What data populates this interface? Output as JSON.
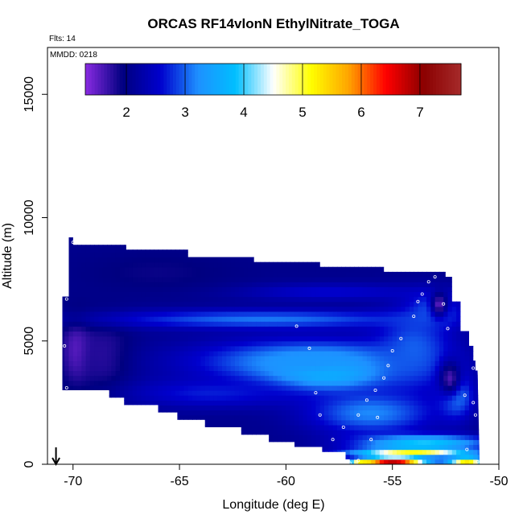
{
  "chart_data": {
    "type": "heatmap",
    "title": "ORCAS RF14vlonN EthylNitrate_TOGA",
    "notes": {
      "flights": "Flts: 14",
      "date": "MMDD: 0218"
    },
    "xlabel": "Longitude (deg E)",
    "ylabel": "Altitude (m)",
    "xlim": [
      -71.2,
      -50
    ],
    "ylim": [
      0,
      16900
    ],
    "x_ticks": [
      -70,
      -65,
      -60,
      -55,
      -50
    ],
    "y_ticks": [
      0,
      5000,
      10000,
      15000
    ],
    "colorbar": {
      "range": [
        1.3,
        7.7
      ],
      "ticks": [
        2,
        3,
        4,
        5,
        6,
        7
      ],
      "colors": [
        "#8a2be2",
        "#000080",
        "#0000cd",
        "#1e90ff",
        "#00bfff",
        "#ffffff",
        "#ffff00",
        "#ffa500",
        "#ff0000",
        "#8b0000",
        "#a52a2a"
      ],
      "placement": "top, inside plot"
    },
    "grid": false,
    "arrow_marker_longitude": -70.8,
    "domain_outline": {
      "top": [
        [
          -70.2,
          8200
        ],
        [
          -70.2,
          9200
        ],
        [
          -70.0,
          9200
        ],
        [
          -70.0,
          8900
        ],
        [
          -67.5,
          8900
        ],
        [
          -67.5,
          8700
        ],
        [
          -64.6,
          8700
        ],
        [
          -64.6,
          8400
        ],
        [
          -61.5,
          8400
        ],
        [
          -61.5,
          8200
        ],
        [
          -58.4,
          8200
        ],
        [
          -58.4,
          8000
        ],
        [
          -55.4,
          8000
        ],
        [
          -55.4,
          7800
        ],
        [
          -52.5,
          7800
        ],
        [
          -52.5,
          7600
        ],
        [
          -52.2,
          7600
        ],
        [
          -52.2,
          6600
        ],
        [
          -51.8,
          6600
        ],
        [
          -51.8,
          5400
        ],
        [
          -51.4,
          5400
        ],
        [
          -51.4,
          4800
        ],
        [
          -51.2,
          4800
        ],
        [
          -51.2,
          4200
        ],
        [
          -51.1,
          4200
        ],
        [
          -51.1,
          3800
        ],
        [
          -51.0,
          3800
        ]
      ],
      "bottom": [
        [
          -70.5,
          3000
        ],
        [
          -68.3,
          3000
        ],
        [
          -68.3,
          2700
        ],
        [
          -67.6,
          2700
        ],
        [
          -67.6,
          2400
        ],
        [
          -66.0,
          2400
        ],
        [
          -66.0,
          2100
        ],
        [
          -65.1,
          2100
        ],
        [
          -65.1,
          1800
        ],
        [
          -63.8,
          1800
        ],
        [
          -63.8,
          1500
        ],
        [
          -62.1,
          1500
        ],
        [
          -62.1,
          1200
        ],
        [
          -60.8,
          1200
        ],
        [
          -60.8,
          900
        ],
        [
          -59.6,
          900
        ],
        [
          -59.6,
          700
        ],
        [
          -58.3,
          700
        ],
        [
          -58.3,
          500
        ],
        [
          -57.2,
          500
        ],
        [
          -57.2,
          200
        ],
        [
          -57.0,
          200
        ],
        [
          -57.0,
          0
        ],
        [
          -50.9,
          0
        ]
      ],
      "left": [
        [
          -70.5,
          3000
        ],
        [
          -70.5,
          6800
        ],
        [
          -70.2,
          6800
        ],
        [
          -70.2,
          8200
        ]
      ]
    },
    "field_blobs": [
      {
        "lon": -69.8,
        "alt": 4600,
        "sx": 0.7,
        "sy": 1300,
        "value": 1.45
      },
      {
        "lon": -68.5,
        "alt": 4300,
        "sx": 1.3,
        "sy": 1600,
        "value": 1.7
      },
      {
        "lon": -58.2,
        "alt": 3800,
        "sx": 2.8,
        "sy": 700,
        "value": 4.4
      },
      {
        "lon": -59.0,
        "alt": 4200,
        "sx": 5.5,
        "sy": 900,
        "value": 3.3
      },
      {
        "lon": -61.0,
        "alt": 5900,
        "sx": 7.5,
        "sy": 380,
        "value": 3.1
      },
      {
        "lon": -58.0,
        "alt": 7000,
        "sx": 4.5,
        "sy": 350,
        "value": 2.6
      },
      {
        "lon": -63.5,
        "alt": 2900,
        "sx": 4.0,
        "sy": 600,
        "value": 2.7
      },
      {
        "lon": -56.0,
        "alt": 2100,
        "sx": 3.0,
        "sy": 900,
        "value": 3.2
      },
      {
        "lon": -54.0,
        "alt": 4700,
        "sx": 1.8,
        "sy": 1600,
        "value": 3.0
      },
      {
        "lon": -53.0,
        "alt": 6300,
        "sx": 1.2,
        "sy": 700,
        "value": 3.0
      },
      {
        "lon": -52.0,
        "alt": 2800,
        "sx": 0.8,
        "sy": 900,
        "value": 3.2
      },
      {
        "lon": -53.5,
        "alt": 900,
        "sx": 3.0,
        "sy": 300,
        "value": 3.9
      },
      {
        "lon": -54.0,
        "alt": 500,
        "sx": 2.8,
        "sy": 180,
        "value": 5.1
      },
      {
        "lon": -55.0,
        "alt": 150,
        "sx": 1.6,
        "sy": 140,
        "value": 7.4
      },
      {
        "lon": -51.5,
        "alt": 150,
        "sx": 0.9,
        "sy": 160,
        "value": 5.6
      },
      {
        "lon": -56.5,
        "alt": 0,
        "sx": 0.5,
        "sy": 120,
        "value": 6.3
      },
      {
        "lon": -52.3,
        "alt": 3500,
        "sx": 0.5,
        "sy": 700,
        "value": 1.6
      },
      {
        "lon": -52.8,
        "alt": 6500,
        "sx": 0.4,
        "sy": 500,
        "value": 1.5
      },
      {
        "lon": -66.0,
        "alt": 7800,
        "sx": 3.5,
        "sy": 800,
        "value": 1.9
      }
    ],
    "background_value": 2.05,
    "sample_points": [
      [
        -70.0,
        9000
      ],
      [
        -70.3,
        6700
      ],
      [
        -70.4,
        4800
      ],
      [
        -70.3,
        3100
      ],
      [
        -53.0,
        7600
      ],
      [
        -53.3,
        7400
      ],
      [
        -53.6,
        6900
      ],
      [
        -54.0,
        6000
      ],
      [
        -54.6,
        5100
      ],
      [
        -55.0,
        4600
      ],
      [
        -55.2,
        4000
      ],
      [
        -55.4,
        3500
      ],
      [
        -55.8,
        3000
      ],
      [
        -56.2,
        2600
      ],
      [
        -56.6,
        2000
      ],
      [
        -57.3,
        1500
      ],
      [
        -57.8,
        1000
      ],
      [
        -58.4,
        2000
      ],
      [
        -58.6,
        2900
      ],
      [
        -58.9,
        4700
      ],
      [
        -59.5,
        5600
      ],
      [
        -55.7,
        1900
      ],
      [
        -56.0,
        1000
      ],
      [
        -56.6,
        150
      ],
      [
        -57.0,
        50
      ],
      [
        -51.0,
        100
      ],
      [
        -51.5,
        600
      ],
      [
        -51.1,
        2000
      ],
      [
        -51.2,
        2500
      ],
      [
        -51.6,
        2800
      ],
      [
        -52.4,
        5500
      ],
      [
        -52.6,
        6500
      ],
      [
        -51.2,
        3900
      ],
      [
        -53.8,
        6600
      ]
    ]
  }
}
